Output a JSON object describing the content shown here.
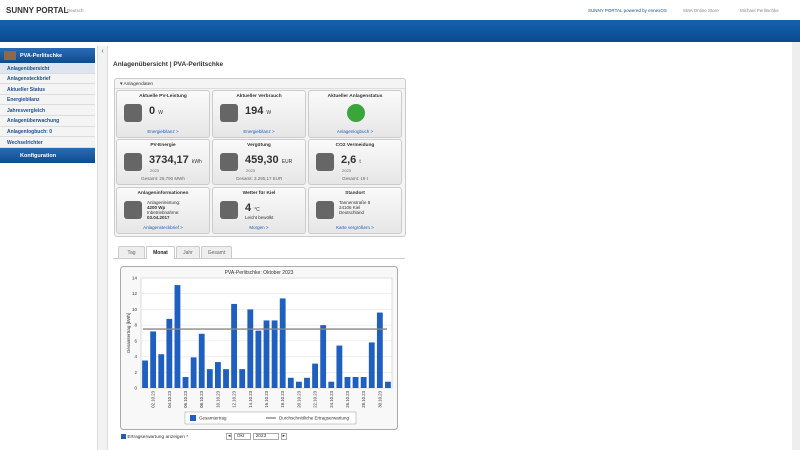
{
  "header": {
    "logo": "SUNNY PORTAL",
    "language": "Deutsch",
    "portal": "SUNNY PORTAL powered by ennexOS",
    "store": "SMA Online Store",
    "user": "Michael Perlitschke"
  },
  "sidebar": {
    "plant": "PVA-Perlitschke",
    "items": [
      "Anlagenübersicht",
      "Anlagensteckbrief",
      "Aktueller Status",
      "Energiebilanz",
      "Jahresvergleich",
      "Anlagenüberwachung",
      "Anlagenlogbuch: 0",
      "Wechselrichter"
    ],
    "config": "Konfiguration"
  },
  "page_title": "Anlagenübersicht | PVA-Perlitschke",
  "panel_title": "Anlagendaten",
  "cards": [
    {
      "title": "Aktuelle PV-Leistung",
      "value": "0",
      "unit": "W",
      "link": "Energiebilanz >"
    },
    {
      "title": "Aktueller Verbrauch",
      "value": "194",
      "unit": "W",
      "link": "Energiebilanz >"
    },
    {
      "title": "Aktueller Anlagenstatus",
      "link": "Anlagenlogbuch >"
    },
    {
      "title": "PV-Energie",
      "value": "3734,17",
      "unit": "kWh",
      "year": "2023",
      "total": "Gesamt: 26,790 MWh"
    },
    {
      "title": "Vergütung",
      "value": "459,30",
      "unit": "EUR",
      "year": "2023",
      "total": "Gesamt: 3.295,17 EUR"
    },
    {
      "title": "CO2 Vermeidung",
      "value": "2,6",
      "unit": "t",
      "year": "2023",
      "total": "Gesamt: 19 t"
    },
    {
      "title": "Anlageninformationen",
      "lines": [
        "Anlagenleistung:",
        "4200 Wp",
        "Inbetriebnahme:",
        "03.04.2017"
      ],
      "link": "Anlagensteckbrief >"
    },
    {
      "title": "Wetter für Kiel",
      "value": "4",
      "unit": "°C",
      "lines": [
        "Leicht bewölkt"
      ],
      "link": "Morgen >"
    },
    {
      "title": "Standort",
      "lines": [
        "Tannenstraße 8",
        "24106 Kiel",
        "Deutschland"
      ],
      "link": "Karte vergrößern >"
    }
  ],
  "tabs": [
    "Tag",
    "Monat",
    "Jahr",
    "Gesamt"
  ],
  "chart_data": {
    "type": "bar",
    "title": "PVA-Perlitschke: Oktober 2023",
    "y_label": "Gesamtertrag [kWh]",
    "categories": [
      null,
      "02.10.23",
      null,
      "04.10.23",
      null,
      "06.10.23",
      null,
      "08.10.23",
      null,
      "10.10.23",
      null,
      "12.10.23",
      null,
      "14.10.23",
      null,
      "16.10.23",
      null,
      "18.10.23",
      null,
      "20.10.23",
      null,
      "22.10.23",
      null,
      "24.10.23",
      null,
      "26.10.23",
      null,
      "28.10.23",
      null,
      "30.10.23",
      null
    ],
    "series": [
      {
        "name": "Gesamtertrag",
        "color": "#1f5fbf",
        "values": [
          3.5,
          7.2,
          4.3,
          8.8,
          13.1,
          1.4,
          3.9,
          6.9,
          2.4,
          3.3,
          2.4,
          10.7,
          2.4,
          10.0,
          7.3,
          8.6,
          8.6,
          11.4,
          1.3,
          0.8,
          1.3,
          3.1,
          8.0,
          0.8,
          5.4,
          1.4,
          1.4,
          1.4,
          5.8,
          9.6,
          0.8
        ]
      }
    ],
    "reference_line": {
      "name": "Durchschnittliche Ertragserwartung",
      "color": "#888888",
      "value": 7.5
    },
    "ylim": [
      0,
      14
    ],
    "yticks": [
      0,
      2,
      4,
      6,
      8,
      10,
      12,
      14
    ],
    "grid": true
  },
  "controls": {
    "checkbox": "Ertragserwartung anzeigen *",
    "month": "Okt",
    "year": "2023"
  }
}
